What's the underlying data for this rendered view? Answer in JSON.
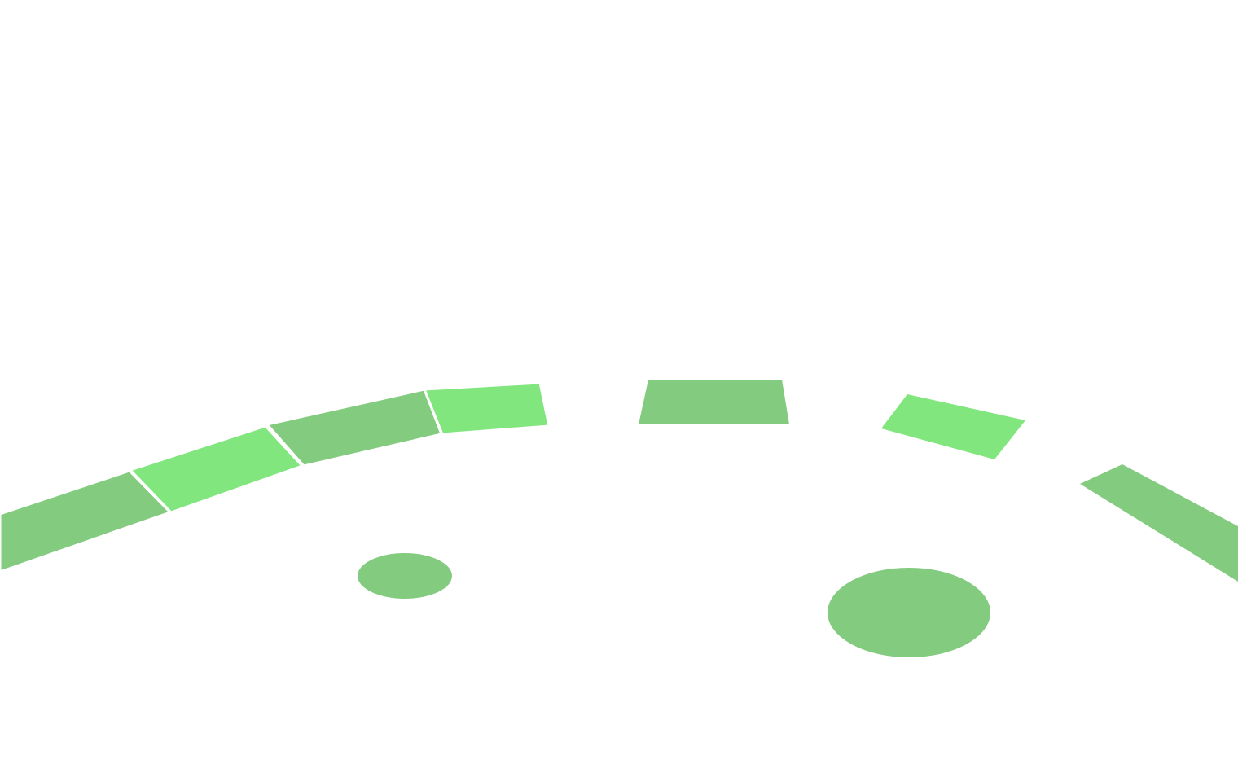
{
  "scene": {
    "background_color": "#ffffff",
    "colors": {
      "tile_dark": "#83cb7f",
      "tile_light": "#81e67e",
      "hole": "#83cb7f",
      "tile_border": "#ffffff"
    },
    "track": {
      "tiles": [
        {
          "name": "track-tile-1",
          "shade": "dark"
        },
        {
          "name": "track-tile-2",
          "shade": "light"
        },
        {
          "name": "track-tile-3",
          "shade": "dark"
        },
        {
          "name": "track-tile-4",
          "shade": "light"
        },
        {
          "name": "track-tile-5",
          "shade": "dark"
        },
        {
          "name": "track-tile-6",
          "shade": "light"
        },
        {
          "name": "track-tile-7",
          "shade": "dark"
        }
      ]
    },
    "holes": [
      {
        "name": "hole-small"
      },
      {
        "name": "hole-large"
      }
    ]
  }
}
